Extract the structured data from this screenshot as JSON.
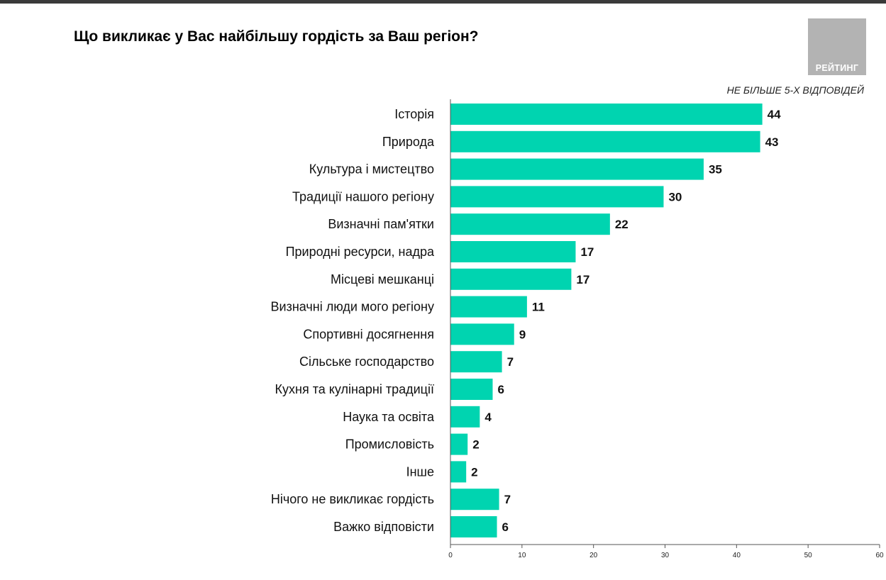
{
  "header": {
    "title": "Що викликає у Вас найбільшу гордість за Ваш регіон?",
    "logo_text": "РЕЙТИНГ",
    "note": "НЕ БІЛЬШЕ 5-Х ВІДПОВІДЕЙ"
  },
  "colors": {
    "bar": "#00D4B0",
    "axis": "#555555",
    "top_bar": "#3a3a3a",
    "logo_bg": "#b3b3b3"
  },
  "chart_data": {
    "type": "bar",
    "orientation": "horizontal",
    "title": "Що викликає у Вас найбільшу гордість за Ваш регіон?",
    "xlabel": "",
    "ylabel": "",
    "xlim": [
      0,
      60
    ],
    "xticks": [
      0,
      10,
      20,
      30,
      40,
      50,
      60
    ],
    "grid": false,
    "legend": "none",
    "categories": [
      "Історія",
      "Природа",
      "Культура і мистецтво",
      "Традиції нашого регіону",
      "Визначні пам'ятки",
      "Природні ресурси, надра",
      "Місцеві мешканці",
      "Визначні люди мого регіону",
      "Спортивні досягнення",
      "Сільське господарство",
      "Кухня та кулінарні традиції",
      "Наука та освіта",
      "Промисловість",
      "Інше",
      "Нічого не викликає гордість",
      "Важко відповісти"
    ],
    "values": [
      44,
      43,
      35,
      30,
      22,
      17,
      17,
      11,
      9,
      7,
      6,
      4,
      2,
      2,
      7,
      6
    ],
    "bar_lengths": [
      43.6,
      43.3,
      35.4,
      29.8,
      22.3,
      17.5,
      16.9,
      10.7,
      8.9,
      7.2,
      5.9,
      4.1,
      2.4,
      2.2,
      6.8,
      6.5
    ]
  }
}
